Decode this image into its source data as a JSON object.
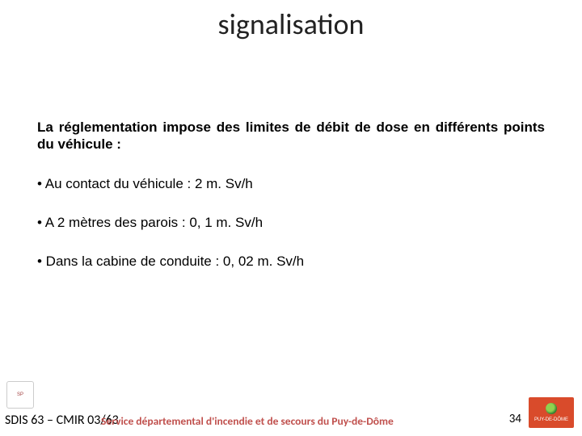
{
  "title": "signalisation",
  "intro": "La réglementation impose des limites de débit de dose en différents points du véhicule :",
  "bullets": [
    "• Au contact du véhicule : 2 m. Sv/h",
    "• A 2 mètres des parois : 0, 1 m. Sv/h",
    "• Dans la cabine de conduite : 0, 02 m. Sv/h"
  ],
  "footer": {
    "left": "SDIS 63 – CMIR 03/63",
    "center": "Service départemental d'incendie et de secours du Puy-de-Dôme",
    "page": "34"
  },
  "colors": {
    "accent": "#c0504d",
    "logo_right_bg": "#d94b2b"
  }
}
